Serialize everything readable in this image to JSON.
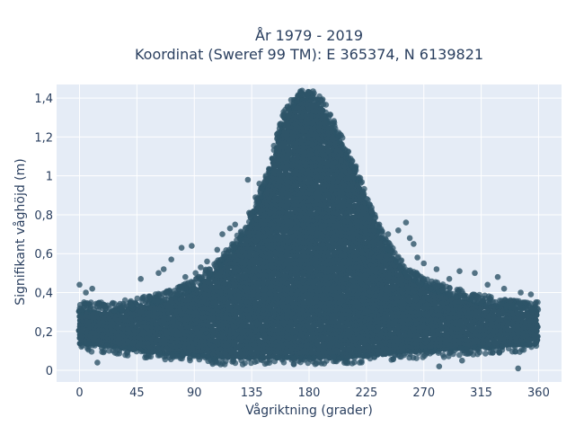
{
  "chart_data": {
    "type": "scatter",
    "title_line1": "År 1979 - 2019",
    "title_line2": "Koordinat (Sweref 99 TM): E 365374, N 6139821",
    "xlabel": "Vågriktning (grader)",
    "ylabel": "Signifikant våghöjd (m)",
    "xlim": [
      -18,
      378
    ],
    "ylim": [
      -0.06,
      1.47
    ],
    "xticks": [
      0,
      45,
      90,
      135,
      180,
      225,
      270,
      315,
      360
    ],
    "xtick_labels": [
      "0",
      "45",
      "90",
      "135",
      "180",
      "225",
      "270",
      "315",
      "360"
    ],
    "yticks": [
      0,
      0.2,
      0.4,
      0.6,
      0.8,
      1.0,
      1.2,
      1.4
    ],
    "ytick_labels": [
      "0",
      "0,2",
      "0,4",
      "0,6",
      "0,8",
      "1",
      "1,2",
      "1,4"
    ],
    "grid": true,
    "marker_color": "#2e5468",
    "background_color": "#e5ecf6",
    "envelope": {
      "direction": [
        0,
        20,
        45,
        70,
        90,
        110,
        130,
        145,
        160,
        170,
        180,
        190,
        200,
        215,
        225,
        240,
        255,
        270,
        290,
        315,
        340,
        360
      ],
      "lower": [
        0.12,
        0.11,
        0.09,
        0.07,
        0.06,
        0.05,
        0.05,
        0.05,
        0.05,
        0.05,
        0.05,
        0.05,
        0.05,
        0.05,
        0.06,
        0.07,
        0.08,
        0.08,
        0.09,
        0.1,
        0.11,
        0.12
      ],
      "upper": [
        0.32,
        0.32,
        0.34,
        0.38,
        0.44,
        0.55,
        0.72,
        0.95,
        1.32,
        1.4,
        1.42,
        1.38,
        1.25,
        1.05,
        0.88,
        0.65,
        0.52,
        0.45,
        0.4,
        0.36,
        0.33,
        0.32
      ]
    },
    "outliers": [
      {
        "x": 0,
        "y": 0.44
      },
      {
        "x": 5,
        "y": 0.4
      },
      {
        "x": 10,
        "y": 0.42
      },
      {
        "x": 48,
        "y": 0.47
      },
      {
        "x": 55,
        "y": 0.38
      },
      {
        "x": 62,
        "y": 0.5
      },
      {
        "x": 66,
        "y": 0.52
      },
      {
        "x": 72,
        "y": 0.57
      },
      {
        "x": 80,
        "y": 0.63
      },
      {
        "x": 83,
        "y": 0.48
      },
      {
        "x": 88,
        "y": 0.64
      },
      {
        "x": 91,
        "y": 0.5
      },
      {
        "x": 95,
        "y": 0.53
      },
      {
        "x": 100,
        "y": 0.56
      },
      {
        "x": 108,
        "y": 0.62
      },
      {
        "x": 112,
        "y": 0.7
      },
      {
        "x": 118,
        "y": 0.73
      },
      {
        "x": 122,
        "y": 0.75
      },
      {
        "x": 133,
        "y": 0.81
      },
      {
        "x": 138,
        "y": 0.89
      },
      {
        "x": 141,
        "y": 0.96
      },
      {
        "x": 132,
        "y": 0.98
      },
      {
        "x": 205,
        "y": 1.08
      },
      {
        "x": 212,
        "y": 1.02
      },
      {
        "x": 218,
        "y": 0.95
      },
      {
        "x": 222,
        "y": 0.9
      },
      {
        "x": 229,
        "y": 0.82
      },
      {
        "x": 235,
        "y": 0.75
      },
      {
        "x": 242,
        "y": 0.7
      },
      {
        "x": 250,
        "y": 0.72
      },
      {
        "x": 256,
        "y": 0.76
      },
      {
        "x": 259,
        "y": 0.68
      },
      {
        "x": 262,
        "y": 0.65
      },
      {
        "x": 265,
        "y": 0.58
      },
      {
        "x": 270,
        "y": 0.55
      },
      {
        "x": 280,
        "y": 0.52
      },
      {
        "x": 290,
        "y": 0.47
      },
      {
        "x": 298,
        "y": 0.51
      },
      {
        "x": 310,
        "y": 0.5
      },
      {
        "x": 320,
        "y": 0.44
      },
      {
        "x": 328,
        "y": 0.48
      },
      {
        "x": 333,
        "y": 0.42
      },
      {
        "x": 338,
        "y": 0.36
      },
      {
        "x": 346,
        "y": 0.4
      },
      {
        "x": 354,
        "y": 0.39
      },
      {
        "x": 358,
        "y": 0.35
      },
      {
        "x": 344,
        "y": 0.01
      },
      {
        "x": 282,
        "y": 0.02
      },
      {
        "x": 300,
        "y": 0.05
      },
      {
        "x": 14,
        "y": 0.04
      }
    ]
  }
}
